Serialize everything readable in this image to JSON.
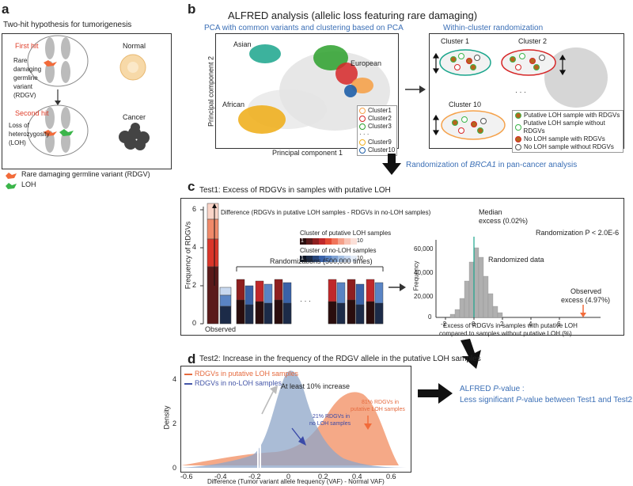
{
  "panel_a": {
    "label": "a",
    "title": "Two-hit hypothesis for tumorigenesis",
    "first_hit": "First hit",
    "first_hit_desc": "Rare damaging germline variant (RDGV)",
    "normal": "Normal",
    "second_hit": "Second hit",
    "second_hit_desc": "Loss of heterozygosity (LOH)",
    "cancer": "Cancer",
    "legend_rdgv": "Rare damaging germline variant (RDGV)",
    "legend_loh": "LOH",
    "color_rdgv": "#f26b3a",
    "color_loh": "#3bb54a"
  },
  "panel_b": {
    "label": "b",
    "title": "ALFRED analysis (allelic loss featuring rare damaging)",
    "left_subtitle": "PCA with common variants and clustering based on PCA",
    "right_subtitle": "Within-cluster randomization",
    "pop_asian": "Asian",
    "pop_european": "European",
    "pop_african": "African",
    "xlabel": "Principal component 1",
    "ylabel": "Principal component 2",
    "legend": [
      "Cluster1",
      "Cluster2",
      "Cluster3",
      "Cluster9",
      "Cluster10"
    ],
    "legend_dots": "· · ·",
    "cluster1": "Cluster 1",
    "cluster2": "Cluster 2",
    "cluster10": "Cluster 10",
    "ellipsis": "· · ·",
    "right_legend": [
      "Putative LOH sample with RDGVs",
      "Putative LOH sample without RDGVs",
      "No LOH sample with RDGVs",
      "No LOH sample without RDGVs"
    ],
    "randomization_text_pre": "Randomization of ",
    "randomization_gene": "BRCA1",
    "randomization_text_post": " in pan-cancer analysis"
  },
  "panel_c": {
    "label": "c",
    "title": "Test1: Excess of RDGVs in samples with putative LOH",
    "ylabel": "Frequency of RDGVs",
    "yticks": [
      "0",
      "2",
      "4",
      "6"
    ],
    "difference_text": "Difference (RDGVs in putative LOH samples - RDGVs in no-LOH samples)",
    "legend_loh": "Cluster of putative LOH samples",
    "legend_noloh": "Cluster of no-LOH samples",
    "scale_start": "1",
    "scale_end": "10",
    "randomizations": "Randomizations (500,000 times)",
    "observed": "Observed",
    "ellipsis": "· · ·",
    "hist_median": "Median",
    "hist_median_val": "excess (0.02%)",
    "hist_pvalue": "Randomization P < 2.0E-6",
    "hist_randomized": "Randomized data",
    "hist_observed": "Observed",
    "hist_observed_val": "excess (4.97%)",
    "hist_ylabel": "Frequency",
    "hist_yticks": [
      "0",
      "20,000",
      "40,000",
      "60,000"
    ],
    "hist_xticks": [
      "-2",
      "0",
      "2",
      "4",
      "6"
    ],
    "hist_xlabel1": "Excess of RDGVs in samples with putative LOH",
    "hist_xlabel2": "compared to samples without putative LOH (%)"
  },
  "panel_d": {
    "label": "d",
    "title": "Test2: Increase in the frequency of the RDGV allele in the putative LOH samples",
    "legend_loh": "RDGVs in putative LOH samples",
    "legend_noloh": "RDGVs in no-LOH samples",
    "increase": "At least 10% increase",
    "pct_noloh_a": "21% RDGVs in",
    "pct_noloh_b": "no LOH samples",
    "pct_loh_a": "81% RDGVs in",
    "pct_loh_b": "putative LOH samples",
    "ylabel": "Density",
    "yticks": [
      "0",
      "2",
      "4"
    ],
    "xticks": [
      "-0.6",
      "-0.4",
      "-0.2",
      "0",
      "0.2",
      "0.4",
      "0.6"
    ],
    "xlabel": "Difference (Tumor variant allele frequency (VAF) - Normal VAF)",
    "alfred_a": "ALFRED ",
    "alfred_p": "P",
    "alfred_b": "-value :",
    "alfred_c1": "Less significant ",
    "alfred_cp": "P",
    "alfred_c2": "-value between Test1 and Test2",
    "color_loh": "#f39a72",
    "color_noloh": "#8ea6c8"
  }
}
